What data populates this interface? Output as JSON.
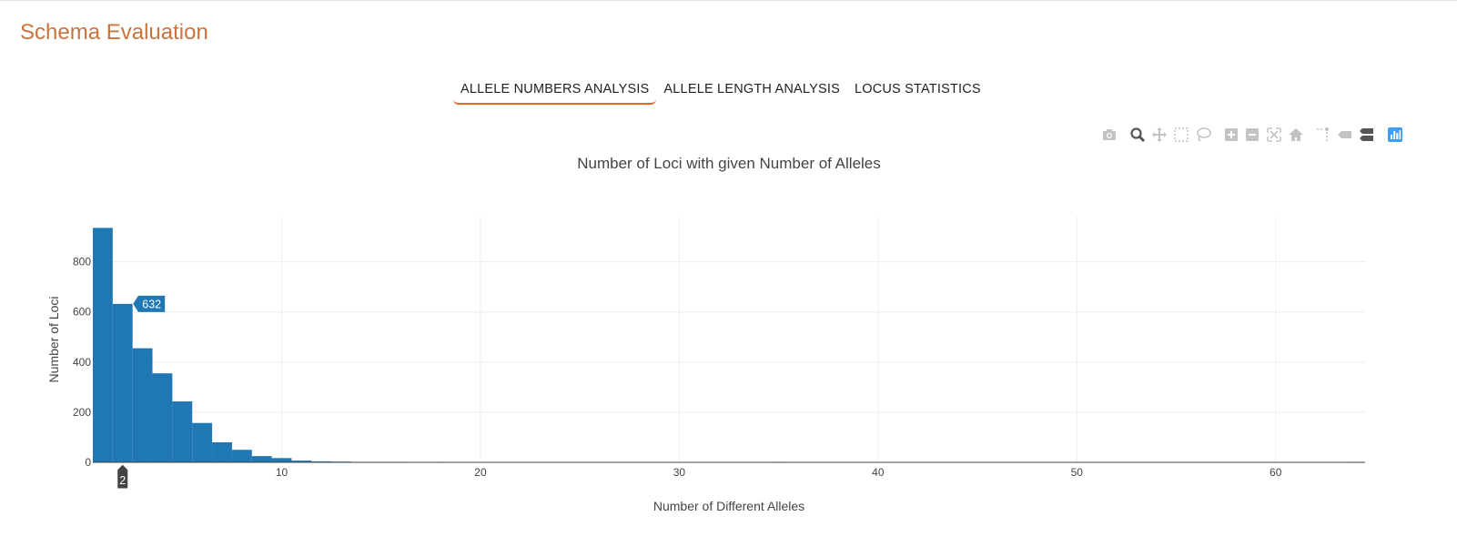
{
  "page": {
    "title": "Schema Evaluation"
  },
  "tabs": [
    {
      "label": "ALLELE NUMBERS ANALYSIS",
      "active": true
    },
    {
      "label": "ALLELE LENGTH ANALYSIS",
      "active": false
    },
    {
      "label": "LOCUS STATISTICS",
      "active": false
    }
  ],
  "toolbar": {
    "icons": [
      "camera-icon",
      "zoom-icon",
      "pan-icon",
      "box-select-icon",
      "lasso-select-icon",
      "zoom-in-icon",
      "zoom-out-icon",
      "autoscale-icon",
      "reset-axes-icon",
      "spike-lines-icon",
      "hover-closest-icon",
      "hover-compare-icon",
      "plotly-logo-icon"
    ]
  },
  "chart_data": {
    "type": "bar",
    "title": "Number of Loci with given Number of Alleles",
    "xlabel": "Number of Different Alleles",
    "ylabel": "Number of Loci",
    "xlim": [
      0.5,
      64.5
    ],
    "ylim": [
      0,
      980
    ],
    "x_ticks": [
      10,
      20,
      30,
      40,
      50,
      60
    ],
    "y_ticks": [
      0,
      200,
      400,
      600,
      800
    ],
    "grid": true,
    "bar_color": "#1f77b4",
    "x": [
      1,
      2,
      3,
      4,
      5,
      6,
      7,
      8,
      9,
      10,
      11,
      12,
      13,
      14,
      15,
      16,
      18,
      35,
      64
    ],
    "values": [
      935,
      632,
      455,
      355,
      243,
      157,
      80,
      50,
      25,
      17,
      7,
      4,
      3,
      2,
      2,
      1,
      1,
      1,
      1
    ],
    "hover": {
      "x": 2,
      "y": 632,
      "x_label": "2",
      "y_label": "632"
    }
  }
}
